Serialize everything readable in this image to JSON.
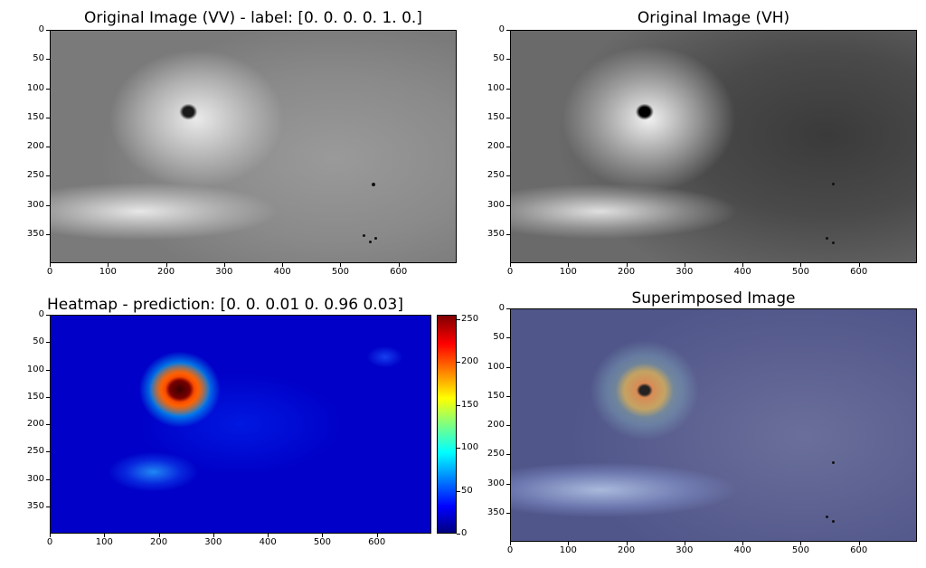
{
  "panels": {
    "vv": {
      "title": "Original Image (VV) - label: [0. 0. 0. 0. 1. 0.]"
    },
    "vh": {
      "title": "Original Image (VH)"
    },
    "heatmap": {
      "title": "Heatmap - prediction: [0.   0.   0.01 0.   0.96 0.03]"
    },
    "superimposed": {
      "title": "Superimposed Image"
    }
  },
  "axes": {
    "y_ticks": [
      "0",
      "50",
      "100",
      "150",
      "200",
      "250",
      "300",
      "350"
    ],
    "x_ticks": [
      "0",
      "100",
      "200",
      "300",
      "400",
      "500",
      "600"
    ]
  },
  "colorbar": {
    "ticks": [
      "0",
      "50",
      "100",
      "150",
      "200",
      "250"
    ],
    "colormap": "jet"
  },
  "colors": {
    "cloud_light": "#e6e6e6",
    "cloud_dark": "#6e6e6e",
    "heat_low": "#0000c8",
    "heat_high": "#d20000"
  }
}
